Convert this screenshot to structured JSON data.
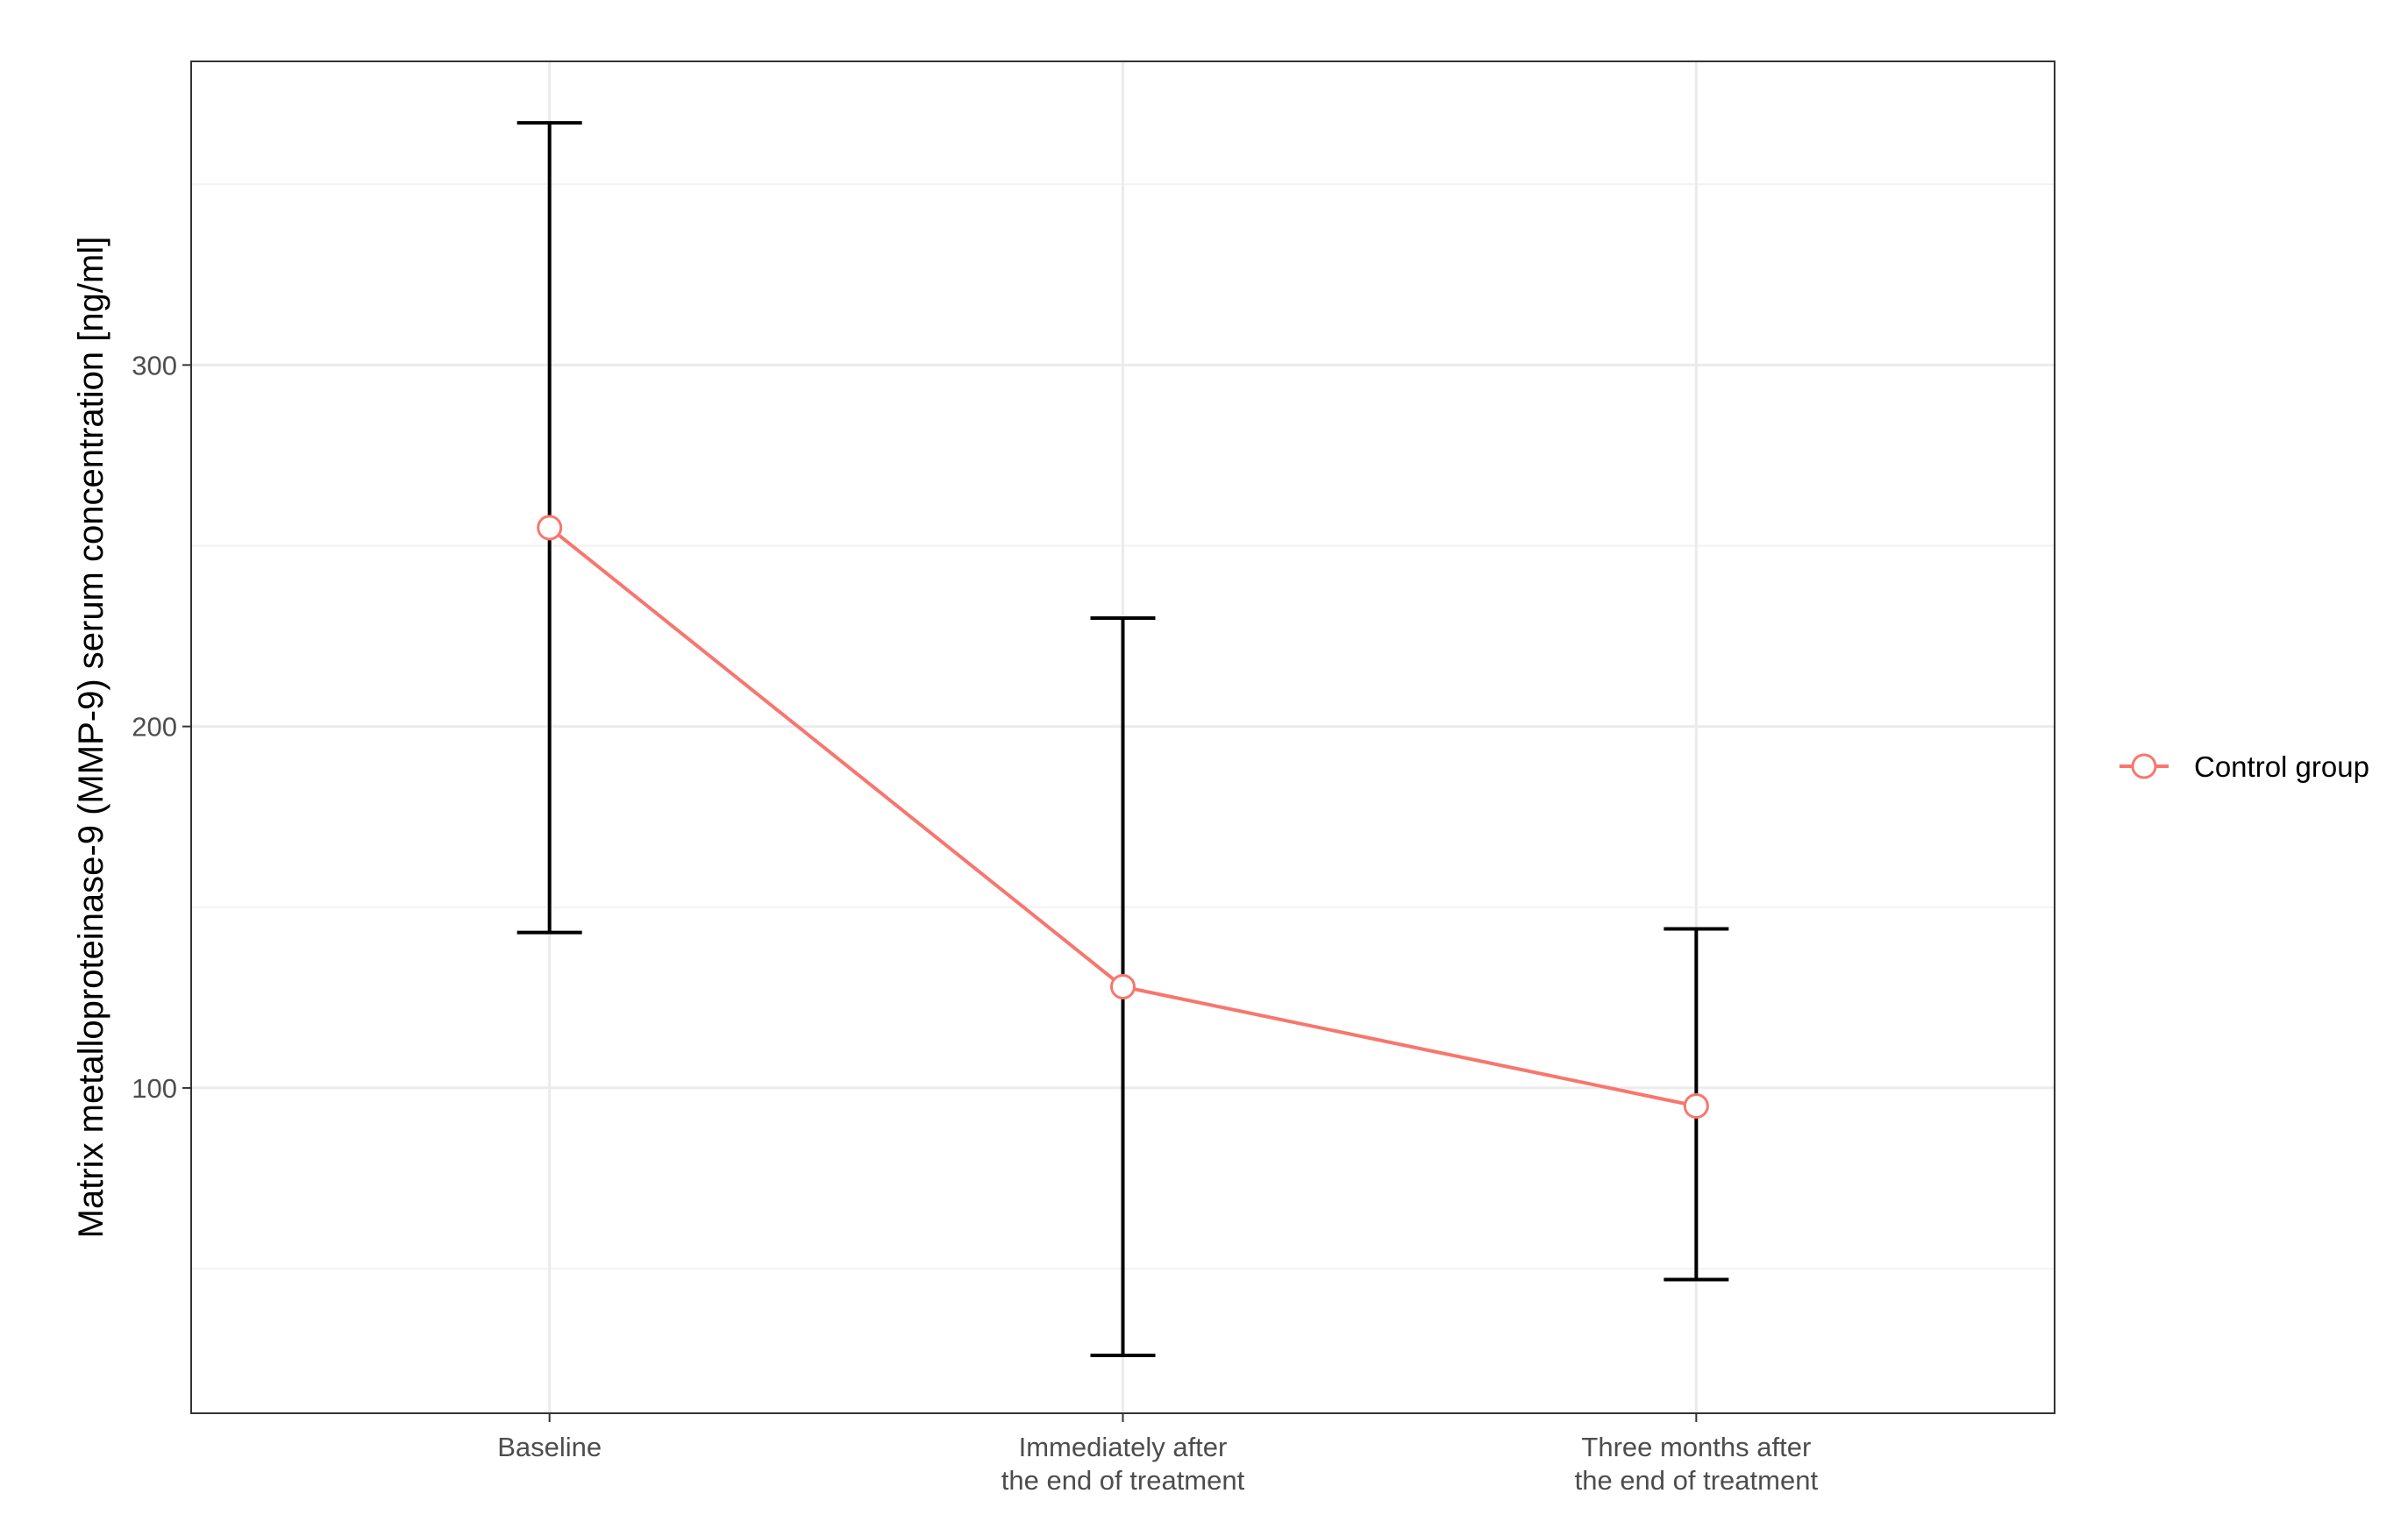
{
  "chart_data": {
    "type": "line",
    "title": "",
    "xlabel": "",
    "ylabel": "Matrix metalloproteinase-9 (MMP-9) serum concentration [ng/ml]",
    "categories": [
      [
        "Baseline"
      ],
      [
        "Immediately after",
        "the end of treatment"
      ],
      [
        "Three months after",
        "the end of treatment"
      ]
    ],
    "ylim": [
      10,
      384
    ],
    "yticks": [
      100,
      200,
      300
    ],
    "minor_yticks": [
      50,
      150,
      250,
      350
    ],
    "grid": true,
    "legend_position": "right",
    "series": [
      {
        "name": "Control group",
        "color": "#F8766D",
        "marker": "open-circle",
        "values": [
          255,
          128,
          95
        ],
        "error_lower": [
          143,
          26,
          47
        ],
        "error_upper": [
          367,
          230,
          144
        ]
      }
    ]
  }
}
